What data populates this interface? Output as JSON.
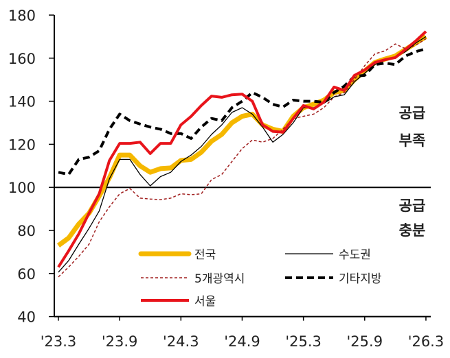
{
  "chart_data": {
    "type": "line",
    "title": "",
    "xlabel": "",
    "ylabel": "",
    "ylim": [
      40,
      180
    ],
    "yticks": [
      40,
      60,
      80,
      100,
      120,
      140,
      160,
      180
    ],
    "xtick_labels": [
      "'23.3",
      "'23.9",
      "'24.3",
      "'24.9",
      "'25.3",
      "'25.9",
      "'26.3"
    ],
    "x_start": "2023-03",
    "x_end": "2026-03",
    "frequency": "monthly",
    "reference_line": 100,
    "grid": false,
    "legend_placement": "bottom-center",
    "annotations": {
      "above": [
        "공급",
        "부족"
      ],
      "below": [
        "공급",
        "충분"
      ]
    },
    "series": [
      {
        "name": "전국",
        "color": "#F5B800",
        "style": "thick",
        "values": [
          73,
          76.5,
          83,
          88,
          96,
          104.5,
          115,
          115,
          110,
          107,
          108.7,
          109,
          112.5,
          113,
          116.3,
          121.4,
          124.6,
          130,
          133,
          134,
          129,
          127,
          126,
          133,
          137,
          138.6,
          140.5,
          144,
          145,
          150,
          154,
          158,
          159.6,
          161,
          164,
          167,
          170
        ]
      },
      {
        "name": "수도권",
        "color": "#000000",
        "style": "thin",
        "values": [
          60.6,
          66,
          73.6,
          81,
          89,
          104,
          113,
          113,
          106,
          100.7,
          105,
          107,
          112,
          115,
          119,
          124.6,
          129,
          134.8,
          137,
          134,
          128,
          121,
          124.6,
          130,
          137,
          137,
          139,
          142,
          143,
          149,
          153,
          157,
          159,
          160.5,
          163,
          167,
          170
        ]
      },
      {
        "name": "5개광역시",
        "color": "#A01E1E",
        "style": "dashed-thin",
        "values": [
          58.4,
          63,
          68,
          73.6,
          84,
          91,
          97,
          99.5,
          95,
          94.6,
          94.3,
          95,
          97,
          96.6,
          97,
          103.6,
          106,
          112,
          118,
          122,
          121,
          122.7,
          127,
          132,
          133,
          134,
          137,
          142,
          144,
          150,
          156.5,
          162,
          163.4,
          166.6,
          164.4,
          166,
          169
        ]
      },
      {
        "name": "기타지방",
        "color": "#000000",
        "style": "dashed-thick",
        "values": [
          107,
          106,
          113,
          114,
          117,
          127,
          134,
          131,
          129.4,
          128,
          127,
          125,
          125,
          122.7,
          128,
          132,
          131,
          137,
          140,
          144,
          141.8,
          138.6,
          137.3,
          140.5,
          140,
          140,
          139.5,
          144,
          147,
          151.6,
          152,
          157,
          157.7,
          157,
          161,
          163,
          164.4
        ]
      },
      {
        "name": "서울",
        "color": "#E8141B",
        "style": "medium",
        "values": [
          63,
          70.5,
          78.4,
          88,
          97,
          112.5,
          120.4,
          120.4,
          121,
          115.7,
          120.4,
          120.4,
          129,
          133,
          138,
          142.4,
          141.8,
          143,
          143.3,
          140,
          129,
          126,
          125.6,
          132,
          138,
          136.4,
          139.6,
          146.6,
          145,
          152,
          154.5,
          158,
          159.3,
          160.3,
          164,
          168,
          172.4
        ]
      }
    ]
  }
}
